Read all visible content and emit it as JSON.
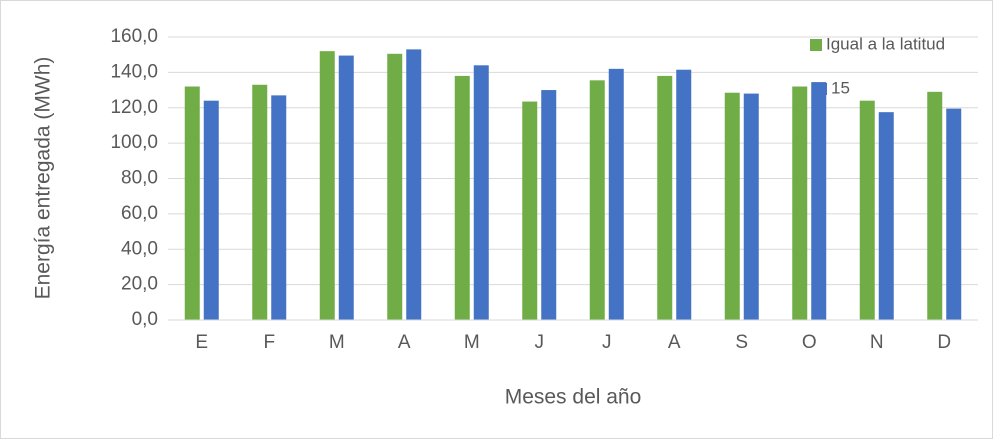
{
  "chart_data": {
    "type": "bar",
    "y_label": "Energía entregada (MWh)",
    "x_label": "Meses del año",
    "categories": [
      "E",
      "F",
      "M",
      "A",
      "M",
      "J",
      "J",
      "A",
      "S",
      "O",
      "N",
      "D"
    ],
    "series": [
      {
        "name": "Igual a la latitud",
        "color": "#70ad47",
        "values": [
          132,
          133,
          152,
          150.5,
          138,
          123.5,
          135.5,
          138,
          128.5,
          132,
          124,
          129
        ]
      },
      {
        "name": "15",
        "color": "#4472c4",
        "values": [
          124,
          127,
          149.5,
          153,
          144,
          130,
          142,
          141.5,
          128,
          134.5,
          117.5,
          119.5
        ]
      }
    ],
    "ylim": [
      0,
      160
    ],
    "yticks": [
      {
        "value": 0,
        "label": "0,0"
      },
      {
        "value": 20,
        "label": "20,0"
      },
      {
        "value": 40,
        "label": "40,0"
      },
      {
        "value": 60,
        "label": "60,0"
      },
      {
        "value": 80,
        "label": "80,0"
      },
      {
        "value": 100,
        "label": "100,0"
      },
      {
        "value": 120,
        "label": "120,0"
      },
      {
        "value": 140,
        "label": "140,0"
      },
      {
        "value": 160,
        "label": "160,0"
      }
    ],
    "grid": true,
    "legend": "top-right"
  }
}
